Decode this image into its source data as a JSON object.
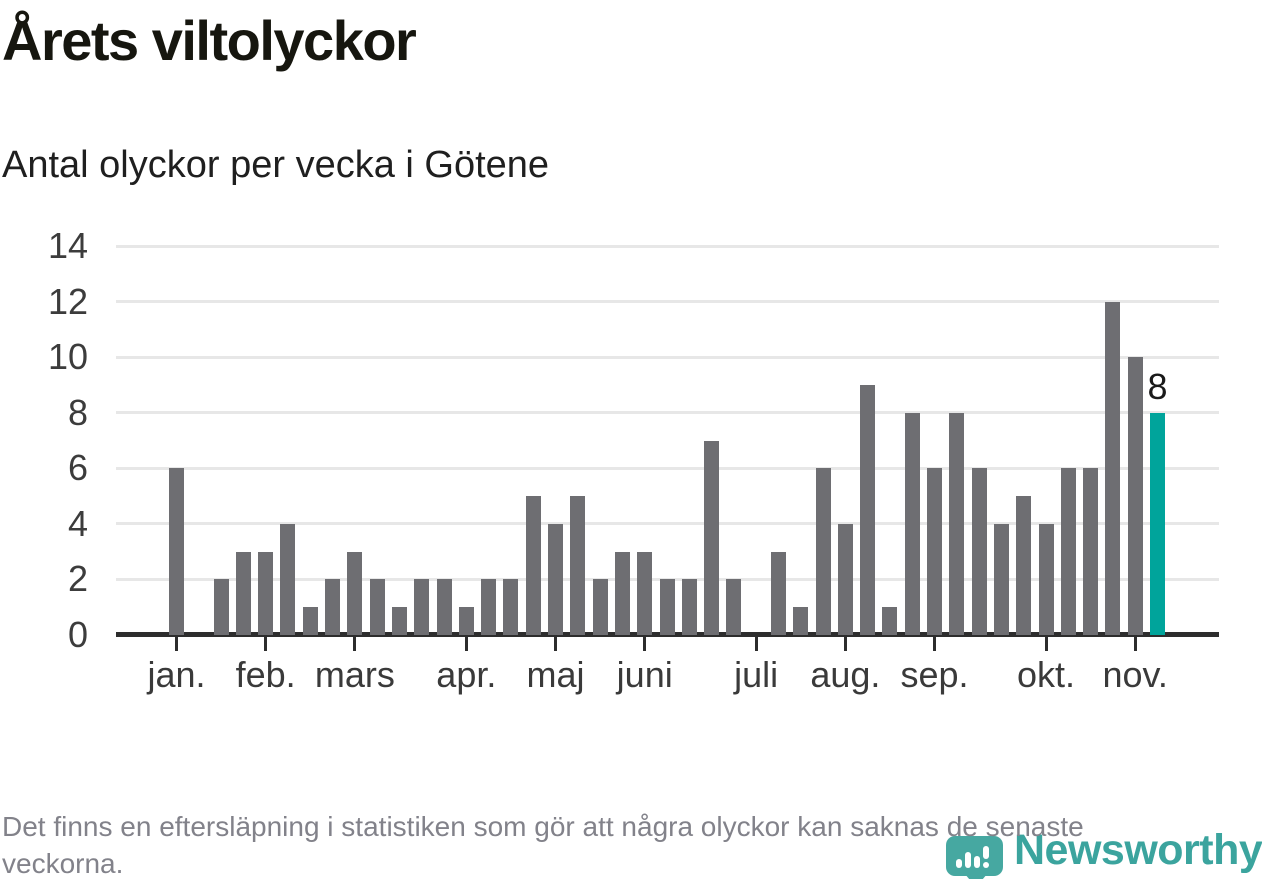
{
  "header": {
    "title": "Årets viltolyckor",
    "subtitle": "Antal olyckor per vecka i Götene"
  },
  "footer": {
    "note": "Det finns en eftersläpning i statistiken som gör att några olyckor kan saknas de senaste veckorna."
  },
  "logo": {
    "wordmark": "Newsworthy",
    "icon": "newsworthy-speech-bubble-barchart-icon"
  },
  "chart_data": {
    "type": "bar",
    "title": "Årets viltolyckor",
    "subtitle": "Antal olyckor per vecka i Götene",
    "xlabel": "",
    "ylabel": "",
    "x_unit": "vecka",
    "values": [
      6,
      0,
      2,
      3,
      3,
      4,
      1,
      2,
      3,
      2,
      1,
      2,
      2,
      1,
      2,
      2,
      5,
      4,
      5,
      2,
      3,
      3,
      2,
      2,
      7,
      2,
      0,
      3,
      1,
      6,
      4,
      9,
      1,
      8,
      6,
      8,
      6,
      4,
      5,
      4,
      6,
      6,
      12,
      10,
      8
    ],
    "highlight_index": 44,
    "annotation": {
      "text": "8",
      "slot": 44
    },
    "month_ticks": [
      {
        "label": "jan.",
        "slot": 0
      },
      {
        "label": "feb.",
        "slot": 4
      },
      {
        "label": "mars",
        "slot": 8
      },
      {
        "label": "apr.",
        "slot": 13
      },
      {
        "label": "maj",
        "slot": 17
      },
      {
        "label": "juni",
        "slot": 21
      },
      {
        "label": "juli",
        "slot": 26
      },
      {
        "label": "aug.",
        "slot": 30
      },
      {
        "label": "sep.",
        "slot": 34
      },
      {
        "label": "okt.",
        "slot": 39
      },
      {
        "label": "nov.",
        "slot": 43
      }
    ],
    "yticks": [
      0,
      2,
      4,
      6,
      8,
      10,
      12,
      14
    ],
    "ylim": [
      0,
      14
    ],
    "grid": "horizontal",
    "legend": "none",
    "colors": {
      "bar": "#6e6e72",
      "highlight": "#00a49b",
      "grid": "#e7e7e7",
      "axis": "#2d2d2d",
      "tick_label": "#3c3c3c",
      "annotation": "#1a1a1a"
    }
  }
}
